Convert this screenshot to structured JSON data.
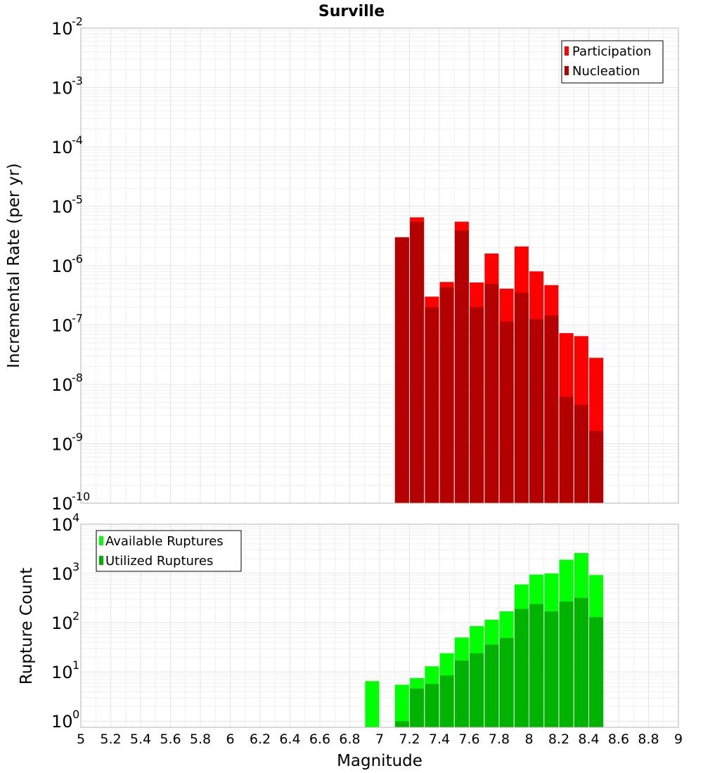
{
  "chart_data": [
    {
      "type": "bar",
      "title": "Surville",
      "xlabel": "",
      "ylabel": "Incremental Rate (per yr)",
      "y_scale": "log",
      "ylim": [
        1e-10,
        0.01
      ],
      "xlim": [
        5,
        9
      ],
      "yticks": [
        {
          "base": "10",
          "exp": "-2"
        },
        {
          "base": "10",
          "exp": "-3"
        },
        {
          "base": "10",
          "exp": "-4"
        },
        {
          "base": "10",
          "exp": "-5"
        },
        {
          "base": "10",
          "exp": "-6"
        },
        {
          "base": "10",
          "exp": "-7"
        },
        {
          "base": "10",
          "exp": "-8"
        },
        {
          "base": "10",
          "exp": "-9"
        },
        {
          "base": "10",
          "exp": "-10"
        }
      ],
      "legend_position": "top-right",
      "x": [
        7.15,
        7.25,
        7.35,
        7.45,
        7.55,
        7.65,
        7.75,
        7.85,
        7.95,
        8.05,
        8.15,
        8.25,
        8.35,
        8.45
      ],
      "series": [
        {
          "name": "Participation",
          "color": "#ff0000",
          "values": [
            3e-06,
            6.5e-06,
            3e-07,
            5.3e-07,
            5.5e-06,
            5.2e-07,
            1.6e-06,
            4.1e-07,
            2.1e-06,
            8e-07,
            4.7e-07,
            7.3e-08,
            6.5e-08,
            2.8e-08
          ]
        },
        {
          "name": "Nucleation",
          "color": "#b30000",
          "values": [
            3e-06,
            5.4e-06,
            2e-07,
            4.3e-07,
            3.9e-06,
            2e-07,
            4.9e-07,
            1.15e-07,
            3.5e-07,
            1.25e-07,
            1.45e-07,
            6.2e-09,
            4.5e-09,
            1.65e-09
          ]
        }
      ]
    },
    {
      "type": "bar",
      "title": "",
      "xlabel": "Magnitude",
      "ylabel": "Rupture Count",
      "y_scale": "log",
      "ylim": [
        0.75,
        10000
      ],
      "xlim": [
        5,
        9
      ],
      "yticks": [
        {
          "base": "10",
          "exp": "4"
        },
        {
          "base": "10",
          "exp": "3"
        },
        {
          "base": "10",
          "exp": "2"
        },
        {
          "base": "10",
          "exp": "1"
        },
        {
          "base": "10",
          "exp": "0"
        }
      ],
      "xticks": [
        "5",
        "5.2",
        "5.4",
        "5.6",
        "5.8",
        "6",
        "6.2",
        "6.4",
        "6.6",
        "6.8",
        "7",
        "7.2",
        "7.4",
        "7.6",
        "7.8",
        "8",
        "8.2",
        "8.4",
        "8.6",
        "8.8",
        "9"
      ],
      "legend_position": "top-left",
      "x": [
        6.95,
        7.15,
        7.25,
        7.35,
        7.45,
        7.55,
        7.65,
        7.75,
        7.85,
        7.95,
        8.05,
        8.15,
        8.25,
        8.35,
        8.45
      ],
      "series": [
        {
          "name": "Available Ruptures",
          "color": "#00ff00",
          "values": [
            6.5,
            5.5,
            7.5,
            13,
            24,
            50,
            85,
            115,
            170,
            600,
            950,
            1000,
            1900,
            2600,
            930
          ]
        },
        {
          "name": "Utilized Ruptures",
          "color": "#00b300",
          "values": [
            null,
            1.0,
            4.6,
            5.7,
            8.5,
            17,
            24,
            36,
            49,
            190,
            240,
            170,
            270,
            320,
            130
          ]
        }
      ]
    }
  ]
}
